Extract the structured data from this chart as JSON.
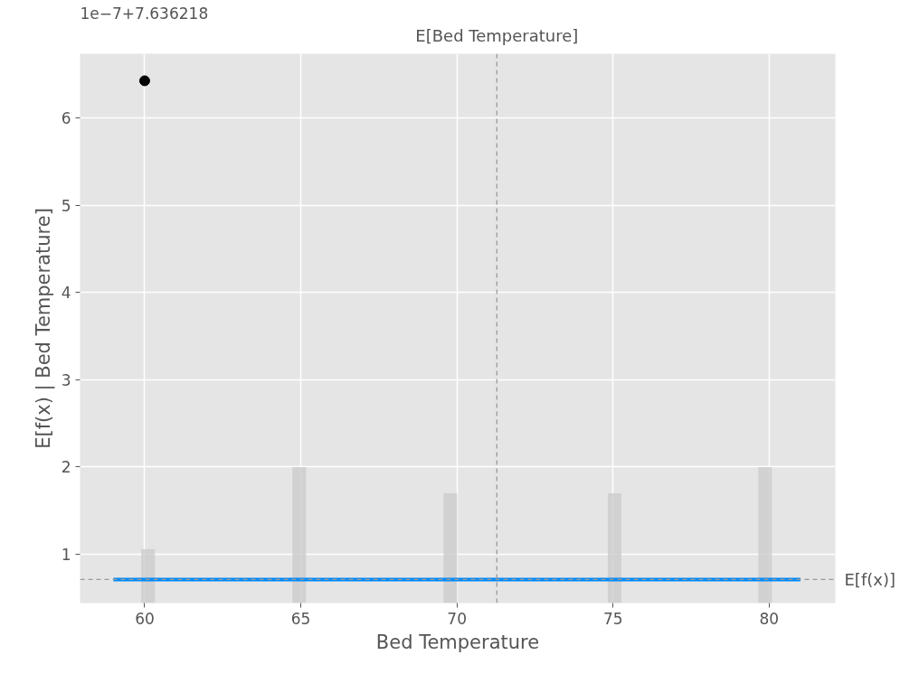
{
  "chart_data": {
    "type": "line",
    "xlabel": "Bed Temperature",
    "ylabel": "E[f(x) | Bed Temperature]",
    "annotations": [
      "1e−7+7.636218"
    ],
    "xlim": [
      57.93,
      82.12
    ],
    "ylim": [
      0.44,
      6.74
    ],
    "xticks": [
      60,
      65,
      70,
      75,
      80
    ],
    "yticks": [
      1,
      2,
      3,
      4,
      5,
      6
    ],
    "grid": true,
    "series": [
      {
        "type": "bar",
        "color": "#cccccc",
        "x": [
          60.11,
          64.95,
          69.79,
          75.05,
          79.87
        ],
        "base": [
          0.44,
          0.44,
          0.44,
          0.44,
          0.44
        ],
        "values": [
          0.62,
          1.56,
          1.26,
          1.26,
          1.56
        ]
      },
      {
        "color": "#008bfb",
        "x": [
          59,
          81
        ],
        "values": [
          0.71,
          0.71
        ]
      },
      {
        "type": "scatter",
        "color": "#000000",
        "x": [
          60
        ],
        "values": [
          6.43
        ],
        "marker": "circle"
      }
    ],
    "ref_lines": [
      {
        "axis": "x",
        "value": 71.28,
        "label": "E[Bed Temperature]",
        "color": "#999999",
        "line_style": "dashed"
      },
      {
        "axis": "y",
        "value": 0.71,
        "label": "E[f(x)]",
        "color": "#999999",
        "line_style": "dashed"
      }
    ]
  }
}
